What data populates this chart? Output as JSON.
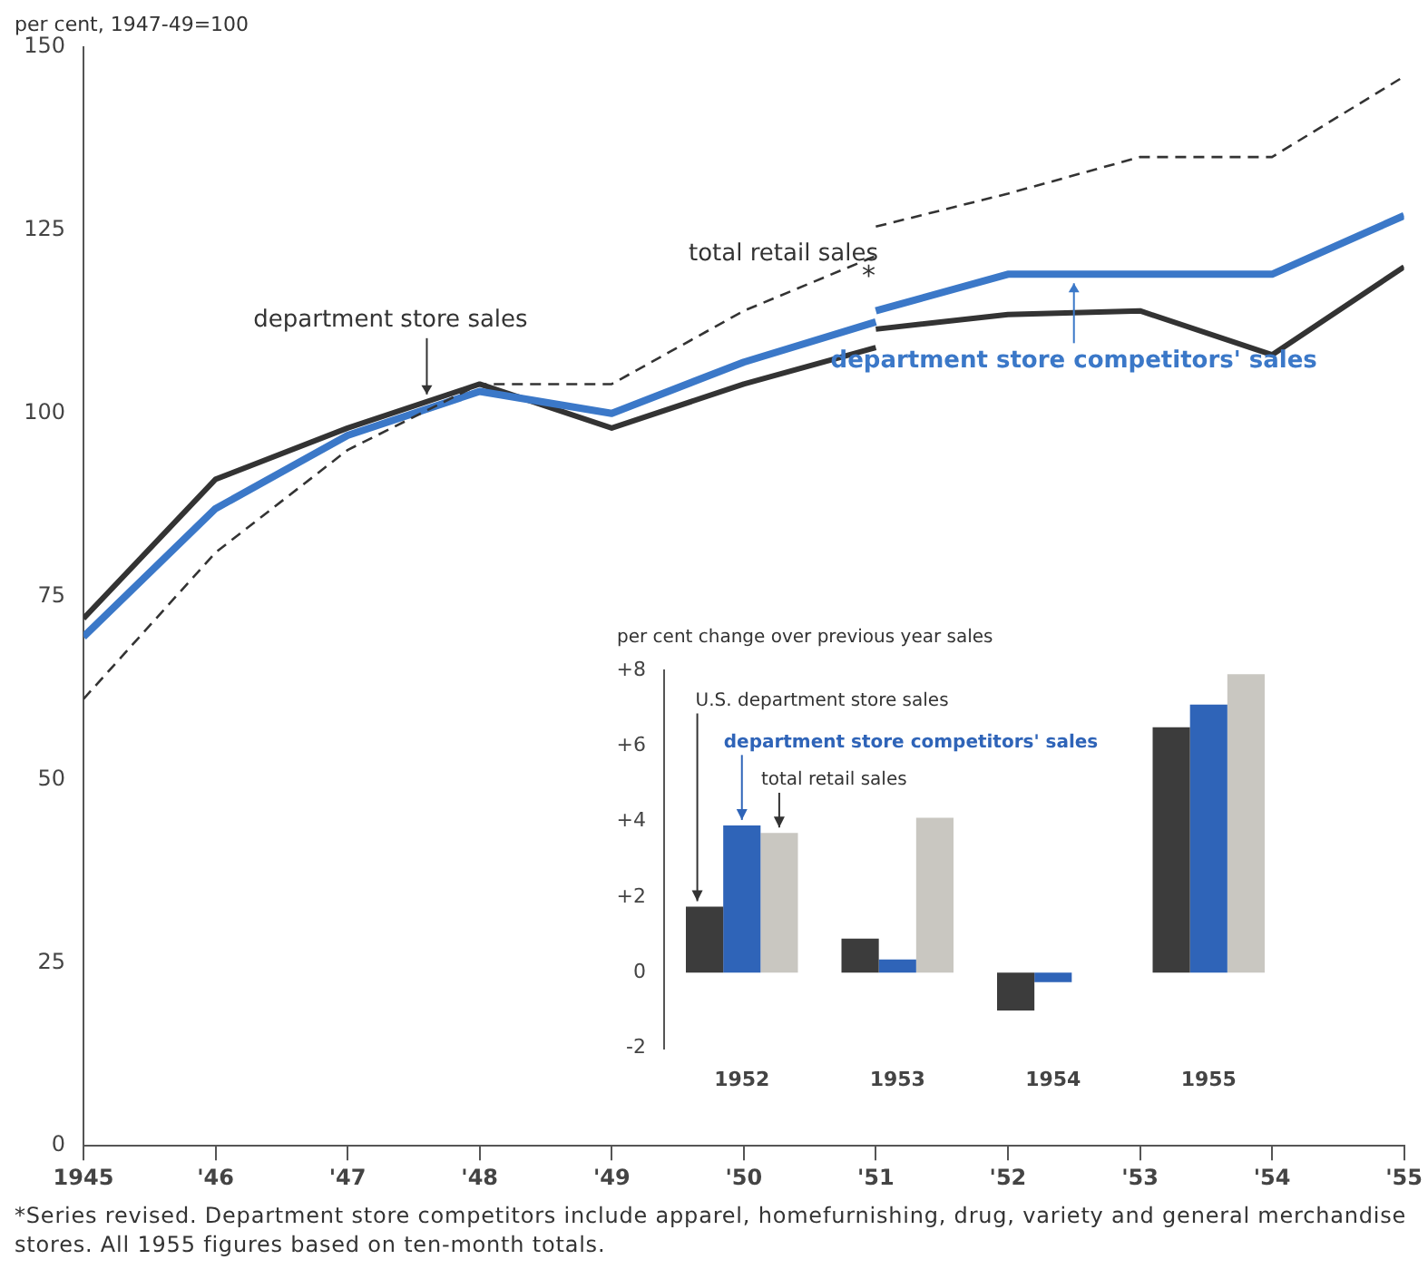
{
  "chart_data": [
    {
      "type": "line",
      "ylabel": "per cent, 1947-49=100",
      "marker": "none",
      "x": [
        1945,
        1946,
        1947,
        1948,
        1949,
        1950,
        1951,
        1951,
        1952,
        1953,
        1954,
        1955
      ],
      "series": [
        {
          "name": "department store sales",
          "color": "#333333",
          "line_style": "solid",
          "values": [
            72,
            91,
            98,
            104,
            98,
            104,
            109,
            111.5,
            113.5,
            114,
            108,
            120
          ]
        },
        {
          "name": "department store competitors' sales",
          "color": "#3b78c8",
          "line_style": "solid",
          "values": [
            69.5,
            87,
            97,
            103,
            100,
            107,
            112.5,
            114,
            119,
            119,
            119,
            127
          ]
        },
        {
          "name": "total retail sales",
          "color": "#333333",
          "line_style": "dashed",
          "values": [
            61,
            81,
            95,
            104,
            104,
            114,
            121.5,
            125.5,
            130,
            135,
            135,
            146
          ]
        }
      ],
      "xlim": [
        1945,
        1955
      ],
      "ylim": [
        0,
        150
      ],
      "xticks": [
        {
          "value": 1945,
          "label": "1945"
        },
        {
          "value": 1946,
          "label": "'46"
        },
        {
          "value": 1947,
          "label": "'47"
        },
        {
          "value": 1948,
          "label": "'48"
        },
        {
          "value": 1949,
          "label": "'49"
        },
        {
          "value": 1950,
          "label": "'50"
        },
        {
          "value": 1951,
          "label": "'51"
        },
        {
          "value": 1952,
          "label": "'52"
        },
        {
          "value": 1953,
          "label": "'53"
        },
        {
          "value": 1954,
          "label": "'54"
        },
        {
          "value": 1955,
          "label": "'55"
        }
      ],
      "yticks": [
        0,
        25,
        50,
        75,
        100,
        125,
        150
      ],
      "annotations": [
        "*",
        "*Series revised. Department store competitors include apparel, homefurnishing, drug, variety and general merchandise stores. All 1955 figures based on ten-month totals."
      ]
    },
    {
      "type": "bar",
      "ylabel": "per cent change over previous year sales",
      "categories": [
        "1952",
        "1953",
        "1954",
        "1955"
      ],
      "series": [
        {
          "name": "U.S. department store sales",
          "color": "#3c3c3c",
          "values": [
            1.75,
            0.9,
            -1.0,
            6.5
          ]
        },
        {
          "name": "department store competitors' sales",
          "color": "#2f64b8",
          "values": [
            3.9,
            0.35,
            -0.25,
            7.1
          ]
        },
        {
          "name": "total retail sales",
          "color": "#c9c7c1",
          "values": [
            3.7,
            4.1,
            null,
            7.9
          ]
        }
      ],
      "ylim": [
        -2,
        8
      ],
      "yticks": [
        {
          "value": -2,
          "label": "-2"
        },
        {
          "value": 0,
          "label": "0"
        },
        {
          "value": 2,
          "label": "+2"
        },
        {
          "value": 4,
          "label": "+4"
        },
        {
          "value": 6,
          "label": "+6"
        },
        {
          "value": 8,
          "label": "+8"
        }
      ]
    }
  ]
}
